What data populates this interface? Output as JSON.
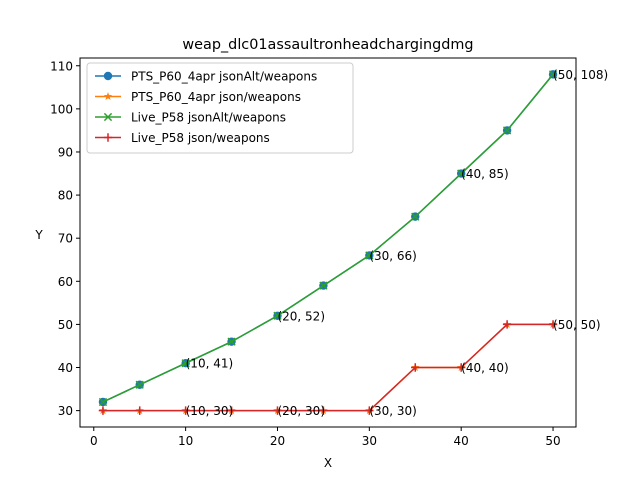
{
  "chart_data": {
    "type": "line",
    "title": "weap_dlc01assaultronheadchargingdmg",
    "xlabel": "X",
    "ylabel": "Y",
    "xlim": [
      -1.5,
      52.5
    ],
    "ylim": [
      26.2,
      111.8
    ],
    "xticks": [
      0,
      10,
      20,
      30,
      40,
      50
    ],
    "yticks": [
      30,
      40,
      50,
      60,
      70,
      80,
      90,
      100,
      110
    ],
    "grid": false,
    "legend_position": "top-left",
    "series": [
      {
        "name": "PTS_P60_4apr jsonAlt/weapons",
        "color": "#1f77b4",
        "marker": "circle",
        "x": [
          1,
          5,
          10,
          15,
          20,
          25,
          30,
          35,
          40,
          45,
          50
        ],
        "y": [
          32,
          36,
          41,
          46,
          52,
          59,
          66,
          75,
          85,
          95,
          108
        ]
      },
      {
        "name": "PTS_P60_4apr json/weapons",
        "color": "#ff7f0e",
        "marker": "star",
        "x": [
          1,
          5,
          10,
          15,
          20,
          25,
          30,
          35,
          40,
          45,
          50
        ],
        "y": [
          30,
          30,
          30,
          30,
          30,
          30,
          30,
          40,
          40,
          50,
          50
        ]
      },
      {
        "name": "Live_P58 jsonAlt/weapons",
        "color": "#2ca02c",
        "marker": "x",
        "x": [
          1,
          5,
          10,
          15,
          20,
          25,
          30,
          35,
          40,
          45,
          50
        ],
        "y": [
          32,
          36,
          41,
          46,
          52,
          59,
          66,
          75,
          85,
          95,
          108
        ]
      },
      {
        "name": "Live_P58 json/weapons",
        "color": "#d62728",
        "marker": "plus",
        "x": [
          1,
          5,
          10,
          15,
          20,
          25,
          30,
          35,
          40,
          45,
          50
        ],
        "y": [
          30,
          30,
          30,
          30,
          30,
          30,
          30,
          40,
          40,
          50,
          50
        ]
      }
    ],
    "annotations": [
      {
        "x": 10,
        "y": 41,
        "text": "(10, 41)"
      },
      {
        "x": 20,
        "y": 52,
        "text": "(20, 52)"
      },
      {
        "x": 30,
        "y": 66,
        "text": "(30, 66)"
      },
      {
        "x": 40,
        "y": 85,
        "text": "(40, 85)"
      },
      {
        "x": 50,
        "y": 108,
        "text": "(50, 108)"
      },
      {
        "x": 10,
        "y": 30,
        "text": "(10, 30)"
      },
      {
        "x": 20,
        "y": 30,
        "text": "(20, 30)"
      },
      {
        "x": 30,
        "y": 30,
        "text": "(30, 30)"
      },
      {
        "x": 40,
        "y": 40,
        "text": "(40, 40)"
      },
      {
        "x": 50,
        "y": 50,
        "text": "(50, 50)"
      }
    ]
  }
}
